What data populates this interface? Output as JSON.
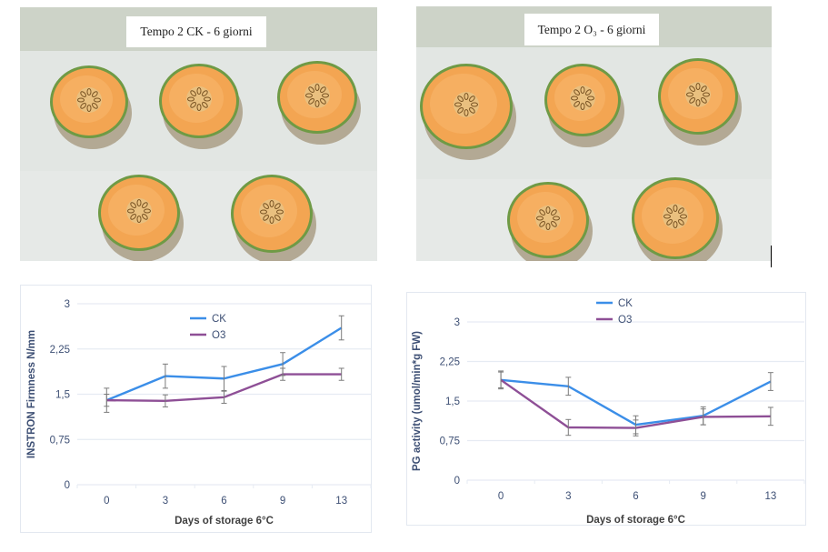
{
  "photos": [
    {
      "label": "Tempo 2 CK - 6 giorni",
      "subject": "five cantaloupe melon slices on white paper"
    },
    {
      "label": "Tempo 2 O₃ - 6 giorni",
      "subject": "five cantaloupe melon slices on white paper"
    }
  ],
  "colors": {
    "ck": "#3b8ee8",
    "o3": "#8e4f96",
    "axis_text": "#3d4f74",
    "grid": "#e6ebf3",
    "errbar": "#7b7b7b"
  },
  "chart_data": [
    {
      "type": "line",
      "title": "",
      "xlabel": "Days of storage 6°C",
      "ylabel": "INSTRON Firmness N/mm",
      "categories": [
        "0",
        "3",
        "6",
        "9",
        "13"
      ],
      "yticks": [
        "0",
        "0,75",
        "1,5",
        "2,25",
        "3"
      ],
      "ylim": [
        0,
        3
      ],
      "grid": true,
      "legend": "top-center",
      "series": [
        {
          "name": "CK",
          "values": [
            1.4,
            1.8,
            1.76,
            2.0,
            2.6
          ],
          "err": [
            0.2,
            0.2,
            0.2,
            0.19,
            0.2
          ]
        },
        {
          "name": "O3",
          "values": [
            1.4,
            1.39,
            1.45,
            1.83,
            1.83
          ],
          "err": [
            0.1,
            0.1,
            0.1,
            0.1,
            0.1
          ]
        }
      ]
    },
    {
      "type": "line",
      "title": "",
      "xlabel": "Days of storage 6°C",
      "ylabel": "PG activity (umol/min*g FW)",
      "categories": [
        "0",
        "3",
        "6",
        "9",
        "13"
      ],
      "yticks": [
        "0",
        "0,75",
        "1,5",
        "2,25",
        "3"
      ],
      "ylim": [
        0,
        3
      ],
      "grid": true,
      "legend": "top-center",
      "series": [
        {
          "name": "CK",
          "values": [
            1.9,
            1.78,
            1.05,
            1.22,
            1.87
          ],
          "err": [
            0.17,
            0.17,
            0.17,
            0.17,
            0.17
          ]
        },
        {
          "name": "O3",
          "values": [
            1.9,
            1.0,
            0.99,
            1.2,
            1.21
          ],
          "err": [
            0.15,
            0.15,
            0.15,
            0.15,
            0.17
          ]
        }
      ]
    }
  ]
}
